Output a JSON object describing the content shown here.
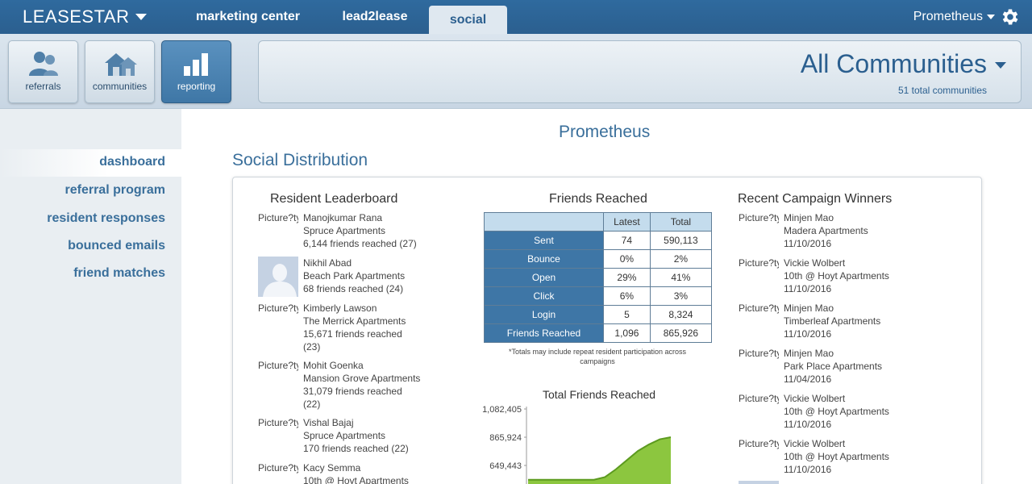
{
  "topbar": {
    "logo": "LEASESTAR",
    "tabs": [
      {
        "label": "marketing center"
      },
      {
        "label": "lead2lease"
      },
      {
        "label": "social"
      }
    ],
    "user_name": "Prometheus"
  },
  "nav": {
    "buttons": [
      {
        "label": "referrals"
      },
      {
        "label": "communities"
      },
      {
        "label": "reporting"
      }
    ],
    "active": "reporting"
  },
  "communities": {
    "title": "All Communities",
    "subtitle": "51 total communities"
  },
  "sidebar": {
    "items": [
      {
        "label": "dashboard"
      },
      {
        "label": "referral program"
      },
      {
        "label": "resident responses"
      },
      {
        "label": "bounced emails"
      },
      {
        "label": "friend matches"
      }
    ],
    "active": "dashboard"
  },
  "main": {
    "page_title": "Prometheus",
    "section_title": "Social Distribution"
  },
  "leaderboard": {
    "title": "Resident Leaderboard",
    "entries": [
      {
        "picture": "Picture?type=square",
        "name": "Manojkumar Rana",
        "property": "Spruce Apartments",
        "reach_1": "6,144 friends reached (27)",
        "reach_2": ""
      },
      {
        "picture": "",
        "name": "Nikhil Abad",
        "property": "Beach Park Apartments",
        "reach_1": "68 friends reached (24)",
        "reach_2": ""
      },
      {
        "picture": "Picture?type=square",
        "name": "Kimberly Lawson",
        "property": "The Merrick Apartments",
        "reach_1": "15,671 friends reached",
        "reach_2": "(23)"
      },
      {
        "picture": "Picture?type=square",
        "name": "Mohit Goenka",
        "property": "Mansion Grove Apartments",
        "reach_1": "31,079 friends reached",
        "reach_2": "(22)"
      },
      {
        "picture": "Picture?type=square",
        "name": "Vishal Bajaj",
        "property": "Spruce Apartments",
        "reach_1": "170 friends reached (22)",
        "reach_2": ""
      },
      {
        "picture": "Picture?type=square",
        "name": "Kacy Semma",
        "property": "10th @ Hoyt Apartments",
        "reach_1": "",
        "reach_2": ""
      }
    ]
  },
  "friends_reached": {
    "title": "Friends Reached",
    "headers": [
      "",
      "Latest",
      "Total"
    ],
    "rows": [
      {
        "label": "Sent",
        "latest": "74",
        "total": "590,113"
      },
      {
        "label": "Bounce",
        "latest": "0%",
        "total": "2%"
      },
      {
        "label": "Open",
        "latest": "29%",
        "total": "41%"
      },
      {
        "label": "Click",
        "latest": "6%",
        "total": "3%"
      },
      {
        "label": "Login",
        "latest": "5",
        "total": "8,324"
      },
      {
        "label": "Friends Reached",
        "latest": "1,096",
        "total": "865,926"
      }
    ],
    "note": "*Totals may include repeat resident participation across campaigns"
  },
  "chart_data": {
    "type": "area",
    "title": "Total Friends Reached",
    "xlabel": "",
    "ylabel": "",
    "y_ticks": [
      "1,082,405",
      "865,924",
      "649,443"
    ],
    "ylim": [
      540000,
      1082405
    ],
    "x": [
      0,
      1,
      2,
      3,
      4,
      5,
      6,
      7,
      8,
      9,
      10,
      11,
      12,
      13
    ],
    "values": [
      540000,
      540000,
      540000,
      540000,
      540000,
      540000,
      540000,
      560000,
      620000,
      690000,
      760000,
      810000,
      850000,
      865926
    ],
    "color": "#8cc63f",
    "grid": false
  },
  "campaign_winners": {
    "title": "Recent Campaign Winners",
    "entries": [
      {
        "picture": "Picture?type=square",
        "name": "Minjen Mao",
        "property": "Madera Apartments",
        "date": "11/10/2016"
      },
      {
        "picture": "Picture?type=square",
        "name": "Vickie Wolbert",
        "property": "10th @ Hoyt Apartments",
        "date": "11/10/2016"
      },
      {
        "picture": "Picture?type=square",
        "name": "Minjen Mao",
        "property": "Timberleaf Apartments",
        "date": "11/10/2016"
      },
      {
        "picture": "Picture?type=square",
        "name": "Minjen Mao",
        "property": "Park Place Apartments",
        "date": "11/04/2016"
      },
      {
        "picture": "Picture?type=square",
        "name": "Vickie Wolbert",
        "property": "10th @ Hoyt Apartments",
        "date": "11/10/2016"
      },
      {
        "picture": "Picture?type=square",
        "name": "Vickie Wolbert",
        "property": "10th @ Hoyt Apartments",
        "date": "11/10/2016"
      }
    ]
  },
  "colors": {
    "brand": "#2b5f8f",
    "link": "#3a6f9b",
    "chart_fill": "#8cc63f",
    "table_label_bg": "#3e76a6",
    "table_header_bg": "#c4dced"
  }
}
